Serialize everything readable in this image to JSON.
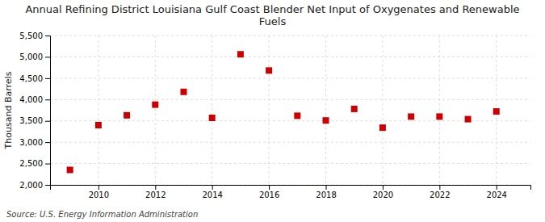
{
  "chart_data": {
    "type": "scatter",
    "title": "Annual Refining District Louisiana Gulf Coast Blender Net Input of Oxygenates and Renewable\nFuels",
    "ylabel": "Thousand Barrels",
    "source": "Source: U.S. Energy Information Administration",
    "x": [
      2009,
      2010,
      2011,
      2012,
      2013,
      2014,
      2015,
      2016,
      2017,
      2018,
      2019,
      2020,
      2021,
      2022,
      2023,
      2024
    ],
    "values": [
      2350,
      3400,
      3630,
      3880,
      4180,
      3570,
      5060,
      4680,
      3620,
      3510,
      3780,
      3340,
      3600,
      3600,
      3540,
      3720
    ],
    "color": "#cc0000",
    "marker": "square",
    "xlim": [
      2008.3,
      2025.2
    ],
    "xticks": [
      2010,
      2012,
      2014,
      2016,
      2018,
      2020,
      2022,
      2024
    ],
    "ylim": [
      2000,
      5500
    ],
    "yticks": [
      {
        "value": 2000,
        "label": "2,000"
      },
      {
        "value": 2500,
        "label": "2,500"
      },
      {
        "value": 3000,
        "label": "3,000"
      },
      {
        "value": 3500,
        "label": "3,500"
      },
      {
        "value": 4000,
        "label": "4,000"
      },
      {
        "value": 4500,
        "label": "4,500"
      },
      {
        "value": 5000,
        "label": "5,000"
      },
      {
        "value": 5500,
        "label": "5,500"
      }
    ],
    "grid": true
  }
}
